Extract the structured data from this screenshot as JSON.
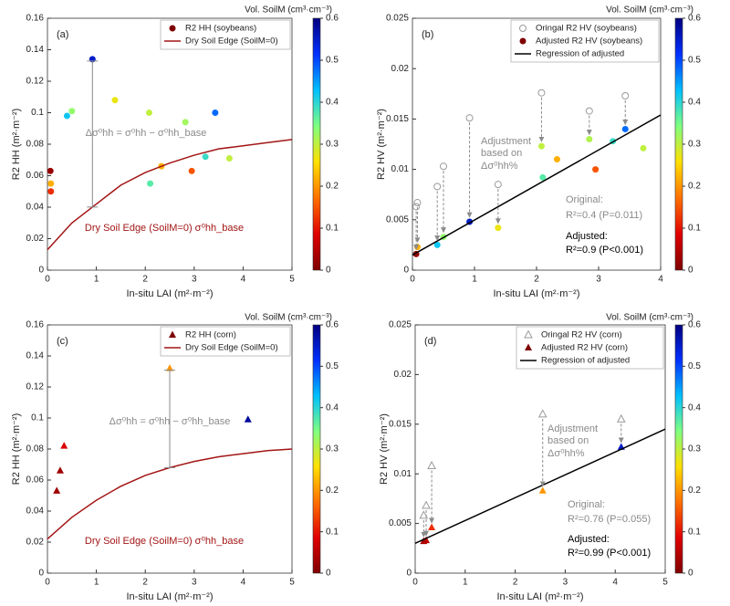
{
  "chart_data": [
    {
      "type": "scatter",
      "panel_label": "(a)",
      "x_label": "In-situ LAI (m²·m⁻²)",
      "y_label": "R2 HH (m²·m⁻²)",
      "xlim": [
        0,
        5
      ],
      "xticks": [
        0,
        1,
        2,
        3,
        4,
        5
      ],
      "ylim": [
        0,
        0.16
      ],
      "yticks": [
        0,
        0.02,
        0.04,
        0.06,
        0.08,
        0.1,
        0.12,
        0.14,
        0.16
      ],
      "colorbar": {
        "label": "Vol. SoilM (cm³·cm⁻³)",
        "lim": [
          0,
          0.6
        ],
        "ticks": [
          0,
          0.1,
          0.2,
          0.3,
          0.4,
          0.5,
          0.6
        ]
      },
      "colormap": [
        "#7f0000",
        "#e00000",
        "#ff7000",
        "#ffe000",
        "#80ff80",
        "#00c0ff",
        "#0030ff",
        "#00007f"
      ],
      "series": [
        {
          "name": "R2 HH (soybeans)",
          "kind": "points",
          "marker": "circle",
          "x": [
            0.06,
            0.07,
            0.07,
            0.4,
            0.5,
            0.92,
            1.38,
            2.08,
            2.1,
            2.33,
            2.82,
            2.95,
            3.23,
            3.43,
            3.72
          ],
          "values": [
            0.063,
            0.055,
            0.05,
            0.098,
            0.101,
            0.134,
            0.108,
            0.1,
            0.055,
            0.066,
            0.094,
            0.063,
            0.072,
            0.1,
            0.071
          ],
          "soil_moisture": [
            0.02,
            0.22,
            0.12,
            0.42,
            0.33,
            0.55,
            0.27,
            0.3,
            0.37,
            0.22,
            0.32,
            0.15,
            0.39,
            0.48,
            0.3
          ]
        },
        {
          "name": "Dry Soil Edge (SoilM=0)",
          "kind": "line",
          "color": "#a31515",
          "x": [
            0,
            0.5,
            1,
            1.5,
            2,
            2.5,
            3,
            3.5,
            4,
            4.5,
            5
          ],
          "values": [
            0.013,
            0.03,
            0.042,
            0.054,
            0.062,
            0.068,
            0.073,
            0.077,
            0.079,
            0.081,
            0.083
          ]
        }
      ],
      "annotations": [
        "Δσ⁰hh = σ⁰hh − σ⁰hh_base",
        "Dry Soil Edge (SoilM=0)  σ⁰hh_base"
      ]
    },
    {
      "type": "scatter",
      "panel_label": "(b)",
      "x_label": "In-situ LAI (m²·m⁻²)",
      "y_label": "R2 HV (m²·m⁻²)",
      "xlim": [
        0,
        4
      ],
      "xticks": [
        0,
        1,
        2,
        3,
        4
      ],
      "ylim": [
        0,
        0.025
      ],
      "yticks": [
        0,
        0.005,
        0.01,
        0.015,
        0.02,
        0.025
      ],
      "colorbar": {
        "label": "Vol. SoilM (cm³·cm⁻³)",
        "lim": [
          0,
          0.6
        ],
        "ticks": [
          0,
          0.1,
          0.2,
          0.3,
          0.4,
          0.5,
          0.6
        ]
      },
      "colormap": [
        "#7f0000",
        "#e00000",
        "#ff7000",
        "#ffe000",
        "#80ff80",
        "#00c0ff",
        "#0030ff",
        "#00007f"
      ],
      "series": [
        {
          "name": "Oringal R2 HV (soybeans)",
          "kind": "hollow",
          "marker": "circle",
          "color": "#9a9a9a",
          "x": [
            0.06,
            0.08,
            0.4,
            0.5,
            0.92,
            1.38,
            2.08,
            2.85,
            3.43
          ],
          "values": [
            0.0063,
            0.0067,
            0.0083,
            0.0103,
            0.0151,
            0.0085,
            0.0176,
            0.0158,
            0.0173
          ]
        },
        {
          "name": "Adjusted R2 HV (soybeans)",
          "kind": "points",
          "marker": "circle",
          "x": [
            0.06,
            0.08,
            0.4,
            0.5,
            0.92,
            1.38,
            2.08,
            2.1,
            2.33,
            2.85,
            2.95,
            3.23,
            3.43,
            3.72
          ],
          "values": [
            0.0016,
            0.0023,
            0.0025,
            0.0033,
            0.0048,
            0.0042,
            0.0123,
            0.0092,
            0.011,
            0.013,
            0.01,
            0.0128,
            0.014,
            0.0121
          ],
          "soil_moisture": [
            0.02,
            0.22,
            0.42,
            0.33,
            0.55,
            0.27,
            0.3,
            0.37,
            0.22,
            0.31,
            0.15,
            0.39,
            0.48,
            0.3
          ]
        },
        {
          "name": "Regression of adjusted",
          "kind": "line",
          "color": "#000000",
          "x": [
            0,
            4
          ],
          "values": [
            0.0015,
            0.0154
          ]
        }
      ],
      "annotations": [
        "Adjustment",
        "based on",
        "Δσ⁰hh%",
        "Original:",
        "R²=0.4 (P=0.011)",
        "Adjusted:",
        "R²=0.9 (P<0.001)"
      ]
    },
    {
      "type": "scatter",
      "panel_label": "(c)",
      "x_label": "In-situ LAI (m²·m⁻²)",
      "y_label": "R2 HH (m²·m⁻²)",
      "xlim": [
        0,
        5
      ],
      "xticks": [
        0,
        1,
        2,
        3,
        4,
        5
      ],
      "ylim": [
        0,
        0.16
      ],
      "yticks": [
        0,
        0.02,
        0.04,
        0.06,
        0.08,
        0.1,
        0.12,
        0.14,
        0.16
      ],
      "colorbar": {
        "label": "Vol. SoilM (cm³·cm⁻³)",
        "lim": [
          0,
          0.6
        ],
        "ticks": [
          0,
          0.1,
          0.2,
          0.3,
          0.4,
          0.5,
          0.6
        ]
      },
      "colormap": [
        "#7f0000",
        "#e00000",
        "#ff7000",
        "#ffe000",
        "#80ff80",
        "#00c0ff",
        "#0030ff",
        "#00007f"
      ],
      "series": [
        {
          "name": "R2 HH (corn)",
          "kind": "points",
          "marker": "triangle",
          "x": [
            0.19,
            0.26,
            0.34,
            2.5,
            4.1
          ],
          "values": [
            0.053,
            0.066,
            0.082,
            0.132,
            0.099
          ],
          "soil_moisture": [
            0.03,
            0.03,
            0.08,
            0.2,
            0.58
          ]
        },
        {
          "name": "Dry Soil Edge (SoilM=0)",
          "kind": "line",
          "color": "#a31515",
          "x": [
            0,
            0.5,
            1,
            1.5,
            2,
            2.5,
            3,
            3.5,
            4,
            4.5,
            5
          ],
          "values": [
            0.022,
            0.036,
            0.047,
            0.056,
            0.063,
            0.068,
            0.072,
            0.075,
            0.077,
            0.079,
            0.08
          ]
        }
      ],
      "annotations": [
        "Δσ⁰hh = σ⁰hh − σ⁰hh_base",
        "Dry Soil Edge (SoilM=0)  σ⁰hh_base"
      ]
    },
    {
      "type": "scatter",
      "panel_label": "(d)",
      "x_label": "In-situ LAI (m²·m⁻²)",
      "y_label": "R2 HV (m²·m⁻²)",
      "xlim": [
        0,
        5
      ],
      "xticks": [
        0,
        1,
        2,
        3,
        4,
        5
      ],
      "ylim": [
        0,
        0.025
      ],
      "yticks": [
        0,
        0.005,
        0.01,
        0.015,
        0.02,
        0.025
      ],
      "colorbar": {
        "label": "Vol. SoilM (cm³·cm⁻³)",
        "lim": [
          0,
          0.6
        ],
        "ticks": [
          0,
          0.1,
          0.2,
          0.3,
          0.4,
          0.5,
          0.6
        ]
      },
      "colormap": [
        "#7f0000",
        "#e00000",
        "#ff7000",
        "#ffe000",
        "#80ff80",
        "#00c0ff",
        "#0030ff",
        "#00007f"
      ],
      "series": [
        {
          "name": "Oringal R2 HV (corn)",
          "kind": "hollow",
          "marker": "triangle",
          "color": "#9a9a9a",
          "x": [
            0.17,
            0.22,
            0.33,
            2.55,
            4.12
          ],
          "values": [
            0.0058,
            0.0068,
            0.0108,
            0.016,
            0.0155
          ]
        },
        {
          "name": "Adjusted R2 HV (corn)",
          "kind": "points",
          "marker": "triangle",
          "x": [
            0.17,
            0.22,
            0.33,
            2.55,
            4.12
          ],
          "values": [
            0.0032,
            0.0033,
            0.0046,
            0.0083,
            0.0127
          ],
          "soil_moisture": [
            0.03,
            0.05,
            0.12,
            0.2,
            0.55
          ]
        },
        {
          "name": "Regression of adjusted",
          "kind": "line",
          "color": "#000000",
          "x": [
            0,
            5
          ],
          "values": [
            0.003,
            0.0145
          ]
        }
      ],
      "annotations": [
        "Adjustment",
        "based on",
        "Δσ⁰hh%",
        "Original:",
        "R²=0.76 (P=0.055)",
        "Adjusted:",
        "R²=0.99 (P<0.001)"
      ]
    }
  ]
}
